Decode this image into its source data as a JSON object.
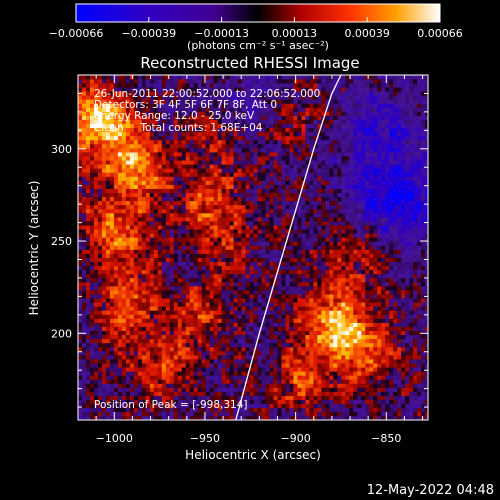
{
  "chart_data": {
    "type": "heatmap",
    "title": "Reconstructed RHESSI Image",
    "xlabel": "Heliocentric X (arcsec)",
    "ylabel": "Heliocentric Y (arcsec)",
    "xlim": [
      -1020,
      -827
    ],
    "ylim": [
      153,
      340
    ],
    "x_ticks": [
      -1000,
      -950,
      -900,
      -850
    ],
    "x_tick_labels": [
      "−1000",
      "−950",
      "−900",
      "−850"
    ],
    "y_ticks": [
      200,
      250,
      300
    ],
    "y_tick_labels": [
      "200",
      "250",
      "300"
    ],
    "colorbar": {
      "range": [
        -0.00066,
        0.00066
      ],
      "tick_labels": [
        "−0.00066",
        "−0.00039",
        "−0.00013",
        "0.00013",
        "0.00039",
        "0.00066"
      ],
      "units": "(photons cm⁻² s⁻¹ asec⁻²)",
      "colormap": "blue-purple-red-yellow-white"
    },
    "annotations": {
      "time_range": "26-Jun-2011 22:00:52.000 to 22:06:52.000",
      "detectors": "Detectors: 3F 4F 5F 6F 7F 8F, Att 0",
      "energy_range": "Energy Range: 12.0 - 25.0 keV",
      "clean_counts": "Clean     Total counts: 1.68E+04",
      "peak_position": "Position of Peak = [-998,314]"
    },
    "limb_curve": [
      [
        -933,
        153
      ],
      [
        -920,
        200
      ],
      [
        -905,
        250
      ],
      [
        -890,
        300
      ],
      [
        -880,
        330
      ],
      [
        -875,
        340
      ]
    ],
    "emission_sources": [
      {
        "x": -1010,
        "y": 315,
        "level": 1.0
      },
      {
        "x": -990,
        "y": 290,
        "level": 0.75
      },
      {
        "x": -1000,
        "y": 255,
        "level": 0.65
      },
      {
        "x": -995,
        "y": 215,
        "level": 0.55
      },
      {
        "x": -975,
        "y": 180,
        "level": 0.5
      },
      {
        "x": -950,
        "y": 270,
        "level": 0.5
      },
      {
        "x": -940,
        "y": 305,
        "level": 0.35
      },
      {
        "x": -955,
        "y": 210,
        "level": 0.4
      },
      {
        "x": -935,
        "y": 245,
        "level": 0.3
      },
      {
        "x": -880,
        "y": 205,
        "level": 0.85
      },
      {
        "x": -862,
        "y": 188,
        "level": 0.55
      },
      {
        "x": -897,
        "y": 175,
        "level": 0.45
      },
      {
        "x": -866,
        "y": 245,
        "level": 0.4
      },
      {
        "x": -902,
        "y": 315,
        "level": 0.35
      }
    ],
    "absorption_regions": [
      {
        "x": -845,
        "y": 270,
        "level": 0.9
      },
      {
        "x": -855,
        "y": 310,
        "level": 0.5
      },
      {
        "x": -925,
        "y": 320,
        "level": 0.4
      }
    ]
  },
  "footer": {
    "timestamp": "12-May-2022 04:48"
  }
}
